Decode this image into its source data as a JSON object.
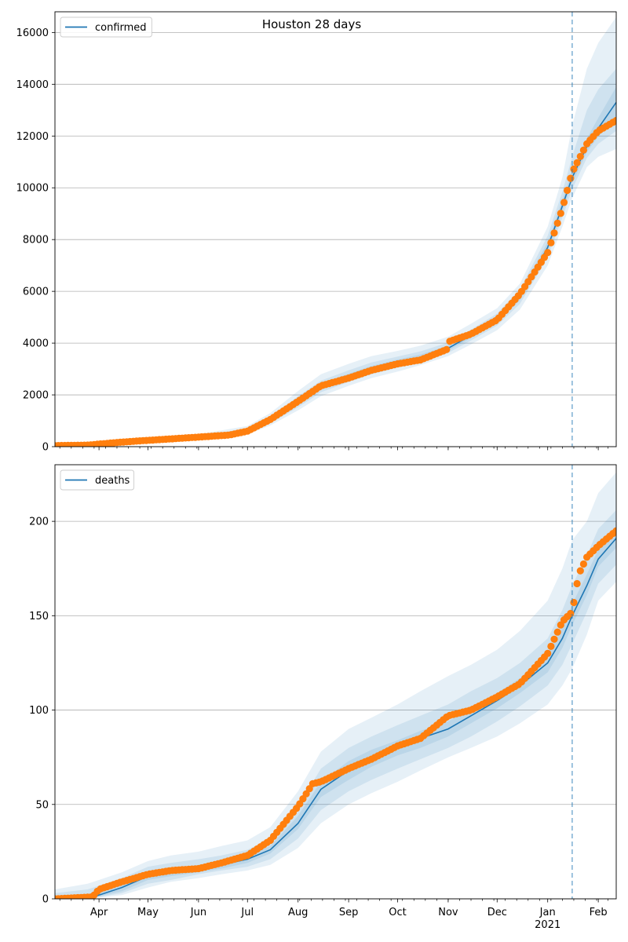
{
  "title": "Houston 28 days",
  "colors": {
    "model": "#1f77b4",
    "observed": "#ff7f0e",
    "band": "#1f77b4",
    "forecast_line": "#1f77b4",
    "grid": "#b0b0b0"
  },
  "chart_data": [
    {
      "type": "line",
      "panel": "top",
      "legend": "confirmed",
      "legend_position": "upper-left",
      "ylim": [
        0,
        16800
      ],
      "yticks": [
        0,
        2000,
        4000,
        6000,
        8000,
        10000,
        12000,
        14000,
        16000
      ],
      "grid": "y",
      "forecast_start": "2021-01-16",
      "model": {
        "name": "confirmed",
        "x": [
          "2020-03-05",
          "2020-04-01",
          "2020-05-01",
          "2020-06-01",
          "2020-07-01",
          "2020-07-15",
          "2020-08-01",
          "2020-08-15",
          "2020-09-01",
          "2020-09-15",
          "2020-10-01",
          "2020-10-15",
          "2020-11-01",
          "2020-11-15",
          "2020-12-01",
          "2020-12-15",
          "2021-01-01",
          "2021-01-10",
          "2021-01-16",
          "2021-01-25",
          "2021-02-01",
          "2021-02-12"
        ],
        "values": [
          0,
          60,
          220,
          380,
          600,
          1000,
          1700,
          2300,
          2700,
          3000,
          3250,
          3450,
          3800,
          4300,
          4900,
          5800,
          7700,
          9300,
          10400,
          11600,
          12300,
          13300
        ]
      },
      "bands": [
        {
          "level": "outer",
          "lower": [
            0,
            40,
            170,
            300,
            480,
            820,
            1400,
            1950,
            2350,
            2650,
            2900,
            3150,
            3500,
            3950,
            4500,
            5300,
            7000,
            8500,
            9600,
            10800,
            11200,
            11500
          ],
          "upper": [
            150,
            120,
            300,
            480,
            800,
            1300,
            2150,
            2800,
            3200,
            3500,
            3700,
            3900,
            4250,
            4750,
            5350,
            6300,
            8500,
            10400,
            12400,
            14600,
            15600,
            16600
          ]
        },
        {
          "level": "middle",
          "lower": [
            0,
            50,
            190,
            330,
            530,
            900,
            1520,
            2100,
            2500,
            2800,
            3050,
            3280,
            3620,
            4100,
            4680,
            5520,
            7300,
            8850,
            9950,
            11150,
            11700,
            12200
          ],
          "upper": [
            80,
            90,
            260,
            430,
            700,
            1150,
            1950,
            2550,
            2950,
            3250,
            3480,
            3680,
            4020,
            4520,
            5150,
            6080,
            8150,
            9850,
            11200,
            13000,
            13800,
            14600
          ]
        },
        {
          "level": "inner",
          "lower": [
            0,
            55,
            205,
            355,
            570,
            950,
            1620,
            2200,
            2600,
            2900,
            3150,
            3370,
            3710,
            4200,
            4790,
            5660,
            7500,
            9080,
            10180,
            11380,
            11980,
            12750
          ],
          "upper": [
            30,
            70,
            240,
            410,
            640,
            1060,
            1800,
            2420,
            2820,
            3120,
            3370,
            3560,
            3910,
            4420,
            5010,
            5950,
            7900,
            9550,
            10650,
            11900,
            12700,
            13900
          ]
        }
      ],
      "observed": {
        "name": "observed",
        "x": [
          "2020-03-05",
          "2020-03-25",
          "2020-04-10",
          "2020-04-25",
          "2020-05-15",
          "2020-06-01",
          "2020-06-20",
          "2020-07-01",
          "2020-07-15",
          "2020-08-01",
          "2020-08-15",
          "2020-09-01",
          "2020-09-15",
          "2020-10-01",
          "2020-10-15",
          "2020-10-31",
          "2020-11-01",
          "2020-11-15",
          "2020-12-01",
          "2020-12-15",
          "2021-01-01",
          "2021-01-10",
          "2021-01-16",
          "2021-01-25",
          "2021-02-01",
          "2021-02-12"
        ],
        "values": [
          40,
          60,
          150,
          220,
          300,
          370,
          450,
          600,
          1050,
          1750,
          2350,
          2650,
          2950,
          3200,
          3350,
          3750,
          4050,
          4350,
          4900,
          5900,
          7500,
          9200,
          10600,
          11700,
          12200,
          12600
        ]
      }
    },
    {
      "type": "line",
      "panel": "bottom",
      "legend": "deaths",
      "legend_position": "upper-left",
      "ylim": [
        0,
        230
      ],
      "yticks": [
        0,
        50,
        100,
        150,
        200
      ],
      "grid": "y",
      "forecast_start": "2021-01-16",
      "xticks": [
        {
          "label": "Apr",
          "date": "2020-04-01"
        },
        {
          "label": "May",
          "date": "2020-05-01"
        },
        {
          "label": "Jun",
          "date": "2020-06-01"
        },
        {
          "label": "Jul",
          "date": "2020-07-01"
        },
        {
          "label": "Aug",
          "date": "2020-08-01"
        },
        {
          "label": "Sep",
          "date": "2020-09-01"
        },
        {
          "label": "Oct",
          "date": "2020-10-01"
        },
        {
          "label": "Nov",
          "date": "2020-11-01"
        },
        {
          "label": "Dec",
          "date": "2020-12-01"
        },
        {
          "label": "Jan",
          "sublabel": "2021",
          "date": "2021-01-01"
        },
        {
          "label": "Feb",
          "date": "2021-02-01"
        }
      ],
      "model": {
        "name": "deaths",
        "x": [
          "2020-03-05",
          "2020-03-25",
          "2020-04-15",
          "2020-05-01",
          "2020-05-15",
          "2020-06-01",
          "2020-06-15",
          "2020-07-01",
          "2020-07-15",
          "2020-08-01",
          "2020-08-15",
          "2020-09-01",
          "2020-09-15",
          "2020-10-01",
          "2020-10-15",
          "2020-11-01",
          "2020-11-15",
          "2020-12-01",
          "2020-12-15",
          "2021-01-01",
          "2021-01-10",
          "2021-01-16",
          "2021-01-25",
          "2021-02-01",
          "2021-02-12"
        ],
        "values": [
          0,
          0,
          6,
          12,
          14,
          16,
          18,
          21,
          26,
          40,
          58,
          68,
          74,
          80,
          85,
          90,
          97,
          105,
          113,
          125,
          138,
          150,
          166,
          180,
          191
        ]
      },
      "bands": [
        {
          "level": "outer",
          "lower": [
            0,
            0,
            2,
            6,
            9,
            11,
            13,
            15,
            18,
            27,
            40,
            50,
            56,
            62,
            68,
            75,
            80,
            86,
            93,
            103,
            113,
            122,
            140,
            158,
            168
          ],
          "upper": [
            5,
            8,
            14,
            20,
            23,
            25,
            28,
            31,
            38,
            57,
            78,
            90,
            96,
            103,
            110,
            118,
            124,
            132,
            142,
            158,
            175,
            190,
            200,
            215,
            226
          ]
        },
        {
          "level": "middle",
          "lower": [
            0,
            0,
            3,
            8,
            10,
            13,
            15,
            17,
            21,
            32,
            47,
            57,
            63,
            69,
            74,
            80,
            86,
            94,
            102,
            113,
            124,
            135,
            152,
            167,
            177
          ],
          "upper": [
            3,
            5,
            11,
            17,
            19,
            21,
            23,
            26,
            32,
            49,
            69,
            80,
            86,
            92,
            97,
            103,
            110,
            117,
            125,
            138,
            153,
            166,
            182,
            196,
            206
          ]
        },
        {
          "level": "inner",
          "lower": [
            0,
            0,
            4,
            10,
            12,
            14,
            16,
            19,
            24,
            37,
            54,
            63,
            70,
            76,
            80,
            86,
            93,
            101,
            109,
            120,
            133,
            145,
            161,
            176,
            186
          ],
          "upper": [
            1,
            2,
            8,
            14,
            16,
            18,
            20,
            23,
            28,
            44,
            62,
            73,
            79,
            84,
            89,
            94,
            101,
            109,
            117,
            130,
            144,
            156,
            172,
            185,
            196
          ]
        }
      ],
      "observed": {
        "name": "observed",
        "x": [
          "2020-03-05",
          "2020-03-28",
          "2020-04-01",
          "2020-04-15",
          "2020-05-01",
          "2020-05-15",
          "2020-06-01",
          "2020-06-15",
          "2020-07-01",
          "2020-07-15",
          "2020-08-01",
          "2020-08-10",
          "2020-08-15",
          "2020-09-01",
          "2020-09-15",
          "2020-10-01",
          "2020-10-15",
          "2020-11-01",
          "2020-11-15",
          "2020-12-01",
          "2020-12-15",
          "2021-01-01",
          "2021-01-10",
          "2021-01-16",
          "2021-01-20",
          "2021-01-25",
          "2021-02-01",
          "2021-02-12"
        ],
        "values": [
          0,
          1,
          5,
          9,
          13,
          15,
          16,
          19,
          23,
          31,
          49,
          61,
          62,
          69,
          74,
          81,
          85,
          97,
          100,
          107,
          114,
          130,
          147,
          152,
          172,
          181,
          187,
          195
        ]
      }
    }
  ]
}
